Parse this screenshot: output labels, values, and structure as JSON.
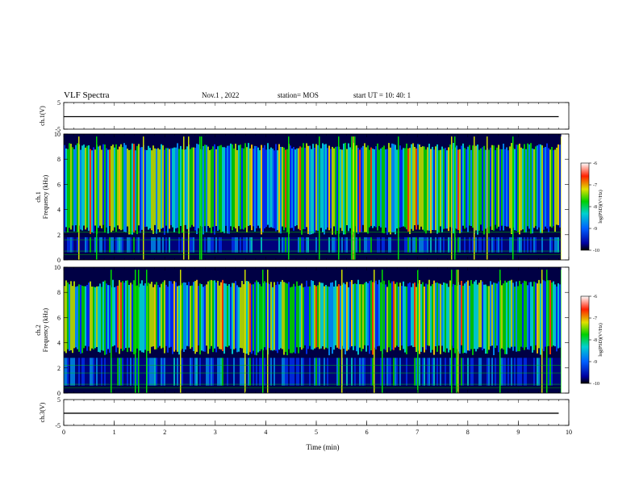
{
  "header": {
    "title": "VLF Spectra",
    "date": "Nov.1  , 2022",
    "station": "station= MOS",
    "start": "start  UT  =    10: 40: 1"
  },
  "chart_data": [
    {
      "type": "line",
      "ylabel": "ch.1(V)",
      "ylim": [
        -5,
        5
      ],
      "yticks": [
        "5",
        "-5"
      ],
      "series": [
        {
          "values": [
            -0.3,
            -0.3,
            -0.3,
            -0.3,
            -0.3
          ]
        }
      ]
    },
    {
      "type": "heatmap",
      "ylabel": "ch.1",
      "ylabel2": "Frequency  (kHz)",
      "ylim": [
        0,
        10
      ],
      "yticks": [
        "0",
        "2",
        "4",
        "6",
        "8",
        "10"
      ],
      "xlim": [
        0,
        10
      ],
      "colorbar": {
        "label": "log(PSD)(V²/Hz)",
        "range": [
          -10,
          -6
        ],
        "ticks": [
          "-6",
          "-7",
          "-8",
          "-9",
          "-10"
        ]
      },
      "intensity_band_khz": [
        2,
        9.3
      ]
    },
    {
      "type": "heatmap",
      "ylabel": "ch.2",
      "ylabel2": "Frequency  (kHz)",
      "ylim": [
        0,
        10
      ],
      "yticks": [
        "0",
        "2",
        "4",
        "6",
        "8",
        "10"
      ],
      "xlim": [
        0,
        10
      ],
      "colorbar": {
        "label": "log(PSD)(V²/Hz)",
        "range": [
          -10,
          -6
        ],
        "ticks": [
          "-6",
          "-7",
          "-8",
          "-9",
          "-10"
        ]
      },
      "intensity_band_khz": [
        3,
        9
      ]
    },
    {
      "type": "line",
      "ylabel": "ch.3(V)",
      "ylim": [
        -5,
        5
      ],
      "yticks": [
        "5",
        "-5"
      ],
      "series": [
        {
          "values": [
            -0.3,
            -0.3,
            -0.3,
            -0.3,
            -0.3
          ]
        }
      ]
    }
  ],
  "xaxis": {
    "label": "Time  (min)",
    "range": [
      0,
      10
    ],
    "ticks": [
      "0",
      "1",
      "2",
      "3",
      "4",
      "5",
      "6",
      "7",
      "8",
      "9",
      "10"
    ]
  },
  "colors": {
    "background": "#000044",
    "trace": "#000000"
  }
}
